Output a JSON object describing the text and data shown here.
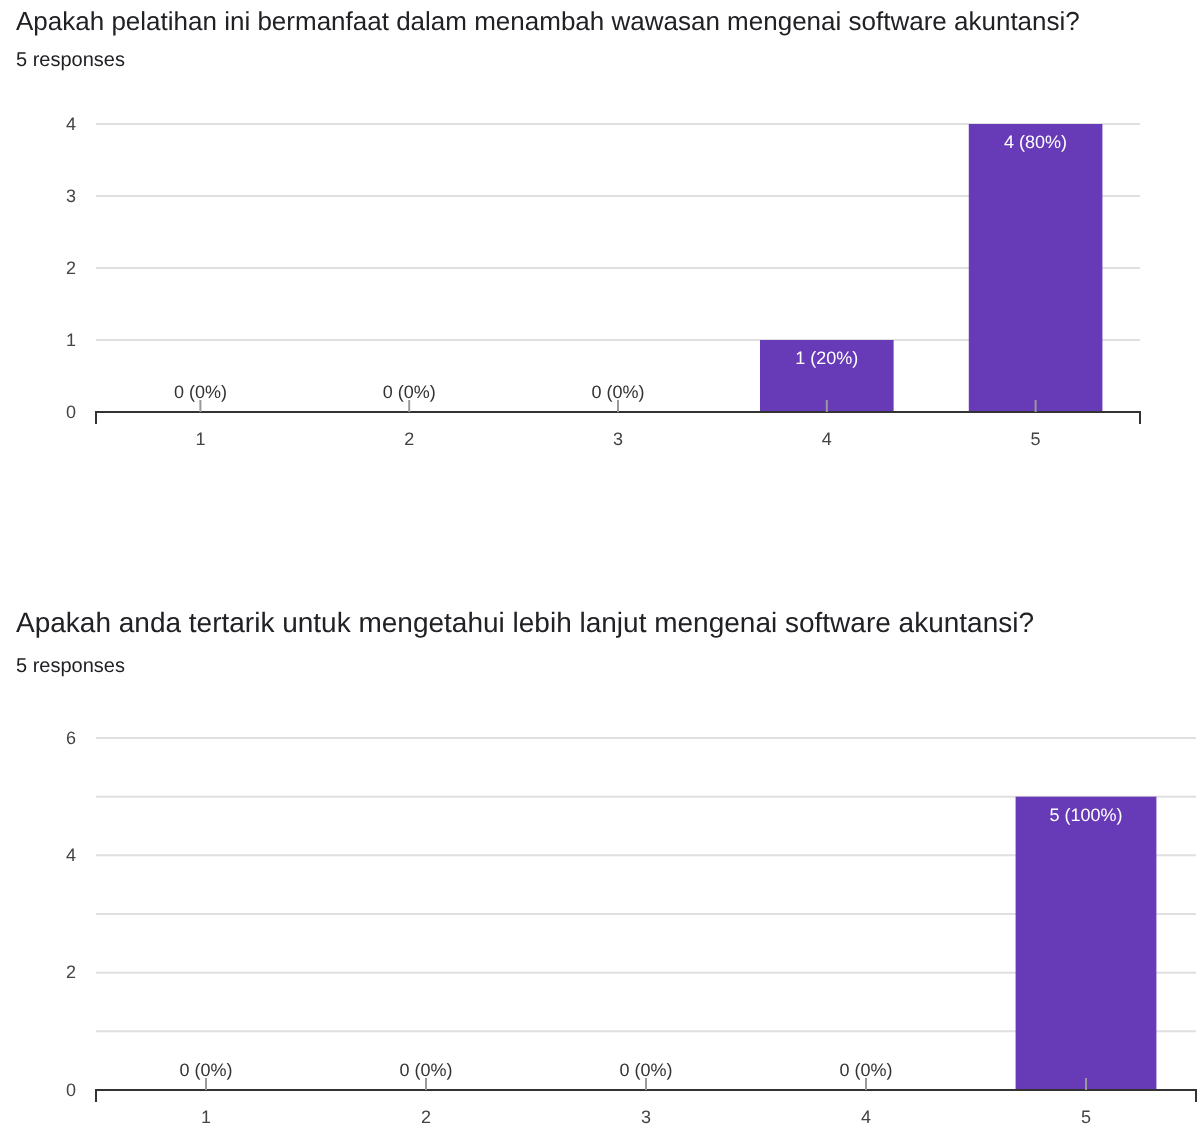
{
  "chart_data": [
    {
      "type": "bar",
      "title": "Apakah pelatihan ini bermanfaat dalam menambah wawasan mengenai software akuntansi?",
      "subtitle": "5 responses",
      "categories": [
        "1",
        "2",
        "3",
        "4",
        "5"
      ],
      "values": [
        0,
        0,
        0,
        1,
        4
      ],
      "color": "#673ab7",
      "value_labels": [
        "0 (0%)",
        "0 (0%)",
        "0 (0%)",
        "1 (20%)",
        "4 (80%)"
      ],
      "ylim": [
        0,
        4
      ],
      "yticks": [
        0,
        1,
        2,
        3,
        4
      ],
      "grid": "y"
    },
    {
      "type": "bar",
      "title": "Apakah anda tertarik untuk mengetahui lebih lanjut mengenai software akuntansi?",
      "subtitle": "5 responses",
      "categories": [
        "1",
        "2",
        "3",
        "4",
        "5"
      ],
      "values": [
        0,
        0,
        0,
        0,
        5
      ],
      "color": "#673ab7",
      "value_labels": [
        "0 (0%)",
        "0 (0%)",
        "0 (0%)",
        "0 (0%)",
        "5 (100%)"
      ],
      "ylim": [
        0,
        6
      ],
      "yticks": [
        0,
        {
          "value": 1,
          "label": null
        },
        2,
        {
          "value": 3,
          "label": null
        },
        4,
        {
          "value": 5,
          "label": null
        },
        6
      ],
      "grid": "y"
    }
  ]
}
